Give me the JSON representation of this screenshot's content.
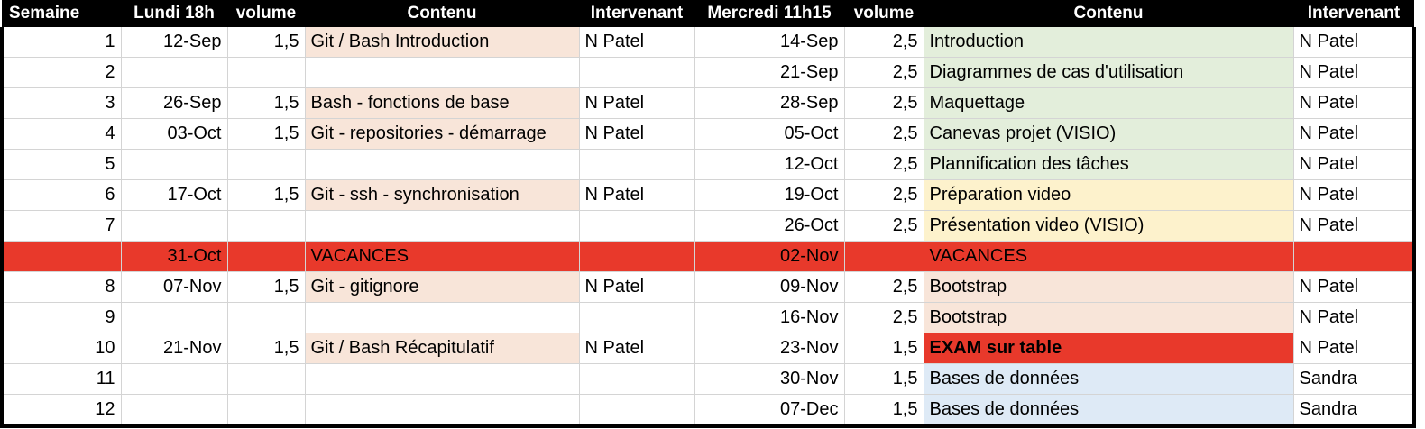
{
  "headers": [
    "Semaine",
    "Lundi 18h",
    "volume",
    "Contenu",
    "Intervenant",
    "Mercredi 11h15",
    "volume",
    "Contenu",
    "Intervenant"
  ],
  "rows": [
    {
      "c": [
        "1",
        "12-Sep",
        "1,5",
        "Git / Bash Introduction",
        "N Patel",
        "14-Sep",
        "2,5",
        "Introduction",
        "N Patel"
      ],
      "fill": [
        "",
        "",
        "",
        "peach",
        "",
        "",
        "",
        "green",
        ""
      ]
    },
    {
      "c": [
        "2",
        "",
        "",
        "",
        "",
        "21-Sep",
        "2,5",
        "Diagrammes de cas d'utilisation",
        "N Patel"
      ],
      "fill": [
        "",
        "",
        "",
        "",
        "",
        "",
        "",
        "green",
        ""
      ]
    },
    {
      "c": [
        "3",
        "26-Sep",
        "1,5",
        "Bash - fonctions de base",
        "N Patel",
        "28-Sep",
        "2,5",
        "Maquettage",
        "N Patel"
      ],
      "fill": [
        "",
        "",
        "",
        "peach",
        "",
        "",
        "",
        "green",
        ""
      ]
    },
    {
      "c": [
        "4",
        "03-Oct",
        "1,5",
        "Git - repositories - démarrage",
        "N Patel",
        "05-Oct",
        "2,5",
        "Canevas projet (VISIO)",
        "N Patel"
      ],
      "fill": [
        "",
        "",
        "",
        "peach",
        "",
        "",
        "",
        "green",
        ""
      ]
    },
    {
      "c": [
        "5",
        "",
        "",
        "",
        "",
        "12-Oct",
        "2,5",
        "Plannification des tâches",
        "N Patel"
      ],
      "fill": [
        "",
        "",
        "",
        "",
        "",
        "",
        "",
        "green",
        ""
      ]
    },
    {
      "c": [
        "6",
        "17-Oct",
        "1,5",
        "Git - ssh - synchronisation",
        "N Patel",
        "19-Oct",
        "2,5",
        "Préparation video",
        "N Patel"
      ],
      "fill": [
        "",
        "",
        "",
        "peach",
        "",
        "",
        "",
        "yellow",
        ""
      ]
    },
    {
      "c": [
        "7",
        "",
        "",
        "",
        "",
        "26-Oct",
        "2,5",
        "Présentation video (VISIO)",
        "N Patel"
      ],
      "fill": [
        "",
        "",
        "",
        "",
        "",
        "",
        "",
        "yellow",
        ""
      ]
    },
    {
      "c": [
        "",
        "31-Oct",
        "",
        "VACANCES",
        "",
        "02-Nov",
        "",
        "VACANCES",
        ""
      ],
      "vacation": true
    },
    {
      "c": [
        "8",
        "07-Nov",
        "1,5",
        "Git - gitignore",
        "N Patel",
        "09-Nov",
        "2,5",
        "Bootstrap",
        "N Patel"
      ],
      "fill": [
        "",
        "",
        "",
        "peach",
        "",
        "",
        "",
        "peach",
        ""
      ]
    },
    {
      "c": [
        "9",
        "",
        "",
        "",
        "",
        "16-Nov",
        "2,5",
        "Bootstrap",
        "N Patel"
      ],
      "fill": [
        "",
        "",
        "",
        "",
        "",
        "",
        "",
        "peach",
        ""
      ]
    },
    {
      "c": [
        "10",
        "21-Nov",
        "1,5",
        "Git / Bash Récapitulatif",
        "N Patel",
        "23-Nov",
        "1,5",
        "EXAM sur table",
        "N Patel"
      ],
      "fill": [
        "",
        "",
        "",
        "peach",
        "",
        "",
        "",
        "red",
        ""
      ],
      "exam": true
    },
    {
      "c": [
        "11",
        "",
        "",
        "",
        "",
        "30-Nov",
        "1,5",
        "Bases de données",
        "Sandra"
      ],
      "fill": [
        "",
        "",
        "",
        "",
        "",
        "",
        "",
        "blue",
        ""
      ]
    },
    {
      "c": [
        "12",
        "",
        "",
        "",
        "",
        "07-Dec",
        "1,5",
        "Bases de données",
        "Sandra"
      ],
      "fill": [
        "",
        "",
        "",
        "",
        "",
        "",
        "",
        "blue",
        ""
      ]
    }
  ],
  "colors": {
    "header_bg": "#000000",
    "vacation": "#e8392b",
    "peach": "#f8e5d9",
    "green": "#e3eedb",
    "yellow": "#fdf2cc",
    "blue": "#deeaf6",
    "red": "#e8392b"
  }
}
